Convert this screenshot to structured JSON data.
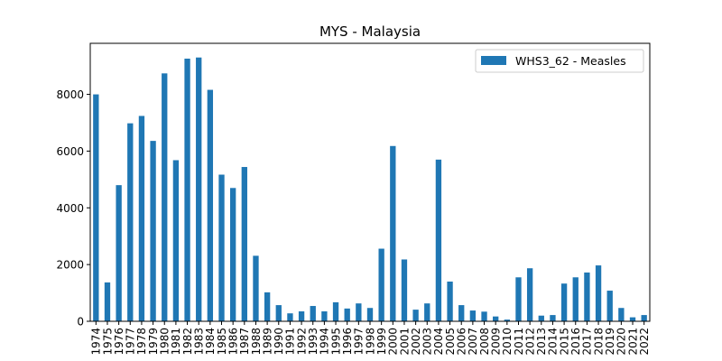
{
  "chart_data": {
    "type": "bar",
    "title": "MYS - Malaysia",
    "xlabel": "",
    "ylabel": "",
    "ylim": [
      0,
      9800
    ],
    "yticks": [
      0,
      2000,
      4000,
      6000,
      8000
    ],
    "legend_position": "top-right",
    "grid": false,
    "categories": [
      "1974",
      "1975",
      "1976",
      "1977",
      "1978",
      "1979",
      "1980",
      "1981",
      "1982",
      "1983",
      "1984",
      "1985",
      "1986",
      "1987",
      "1988",
      "1989",
      "1990",
      "1991",
      "1992",
      "1993",
      "1994",
      "1995",
      "1996",
      "1997",
      "1998",
      "1999",
      "2000",
      "2001",
      "2002",
      "2003",
      "2004",
      "2005",
      "2006",
      "2007",
      "2008",
      "2009",
      "2010",
      "2011",
      "2012",
      "2013",
      "2014",
      "2015",
      "2016",
      "2017",
      "2018",
      "2019",
      "2020",
      "2021",
      "2022"
    ],
    "series": [
      {
        "name": "WHS3_62 - Measles",
        "color": "#1f77b4",
        "values": [
          8000,
          1370,
          4800,
          6980,
          7240,
          6360,
          8740,
          5680,
          9260,
          9300,
          8160,
          5170,
          4700,
          5440,
          2310,
          1020,
          570,
          280,
          350,
          540,
          350,
          670,
          450,
          630,
          470,
          2560,
          6180,
          2180,
          410,
          630,
          5700,
          1400,
          570,
          380,
          340,
          170,
          60,
          1550,
          1870,
          200,
          220,
          1330,
          1550,
          1720,
          1970,
          1080,
          470,
          140,
          220
        ]
      }
    ]
  }
}
